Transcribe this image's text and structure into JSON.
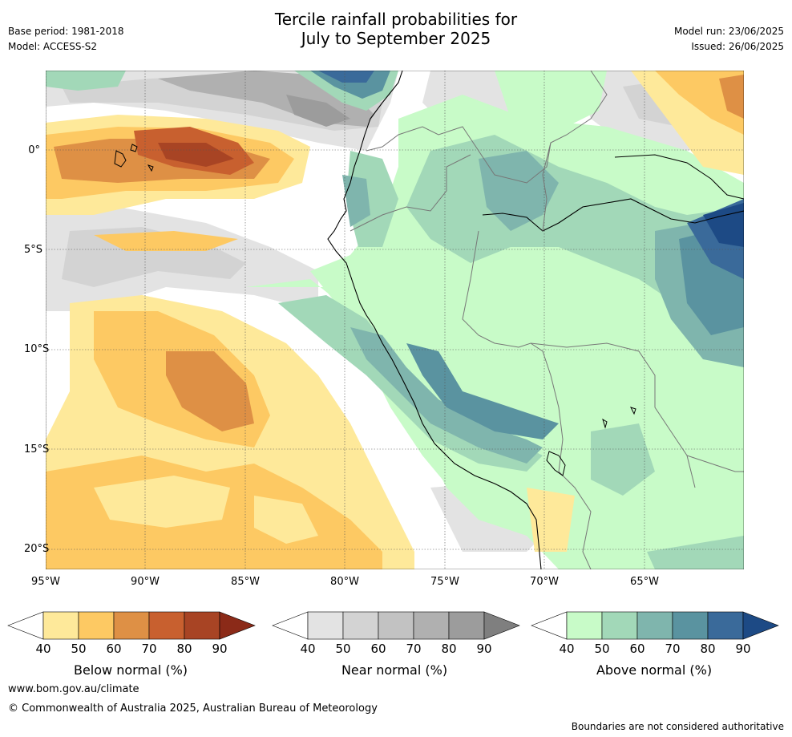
{
  "header": {
    "title_line1": "Tercile rainfall probabilities for",
    "title_line2": "July to September 2025",
    "base_period": "Base period: 1981-2018",
    "model": "Model: ACCESS-S2",
    "model_run": "Model run: 23/06/2025",
    "issued": "Issued: 26/06/2025"
  },
  "map": {
    "lon_labels": [
      "95°W",
      "90°W",
      "85°W",
      "80°W",
      "75°W",
      "70°W",
      "65°W"
    ],
    "lat_labels": [
      "0°",
      "5°S",
      "10°S",
      "15°S",
      "20°S"
    ],
    "extent": {
      "lon": [
        -95,
        -60
      ],
      "lat": [
        -21,
        4
      ]
    }
  },
  "legend": {
    "below": {
      "label": "Below normal (%)",
      "ticks": [
        "40",
        "50",
        "60",
        "70",
        "80",
        "90"
      ],
      "colors": [
        "#ffffff",
        "#fee99a",
        "#fdc963",
        "#de9045",
        "#c8602f",
        "#a84424",
        "#8b2a18"
      ]
    },
    "near": {
      "label": "Near normal (%)",
      "ticks": [
        "40",
        "50",
        "60",
        "70",
        "80",
        "90"
      ],
      "colors": [
        "#ffffff",
        "#e3e3e3",
        "#d3d3d3",
        "#c2c2c2",
        "#b0b0b0",
        "#9c9c9c",
        "#7f7f7f"
      ]
    },
    "above": {
      "label": "Above normal (%)",
      "ticks": [
        "40",
        "50",
        "60",
        "70",
        "80",
        "90"
      ],
      "colors": [
        "#ffffff",
        "#c8fbc8",
        "#a2d8b8",
        "#7fb5ad",
        "#5a93a0",
        "#3a6a9a",
        "#1d4a85"
      ]
    }
  },
  "footer": {
    "website": "www.bom.gov.au/climate",
    "copyright": "© Commonwealth of Australia 2025, Australian Bureau of Meteorology",
    "disclaimer": "Boundaries are not considered authoritative"
  }
}
